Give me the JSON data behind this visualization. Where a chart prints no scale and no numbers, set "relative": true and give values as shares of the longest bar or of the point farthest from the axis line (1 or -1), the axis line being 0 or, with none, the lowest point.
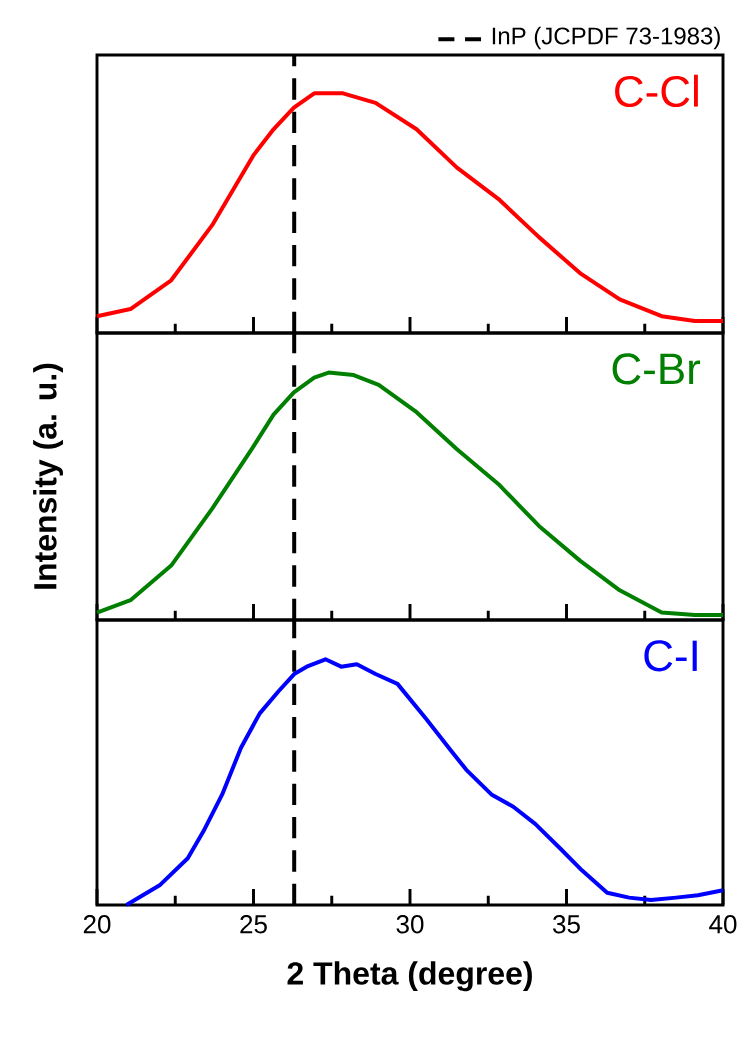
{
  "chart_data": [
    {
      "type": "line",
      "relative": true,
      "xlim": [
        20,
        40
      ],
      "xticks": [
        20,
        {
          "value": 22.5,
          "label": null
        },
        25,
        {
          "value": 27.5,
          "label": null
        },
        30,
        {
          "value": 32.5,
          "label": null
        },
        35,
        {
          "value": 37.5,
          "label": null
        },
        40
      ],
      "tick_labels": false,
      "legend": "top right",
      "series": [
        {
          "name": "C-Cl",
          "color": "#ff0000",
          "x": [
            20,
            21.07,
            22.37,
            23.68,
            24.99,
            25.64,
            26.29,
            26.94,
            27.86,
            28.9,
            30.21,
            31.5,
            32.82,
            34.12,
            35.43,
            36.7,
            38.04,
            39.1,
            40
          ],
          "values": [
            0.07,
            0.1,
            0.22,
            0.45,
            0.74,
            0.85,
            0.94,
            1.0,
            1.0,
            0.96,
            0.85,
            0.69,
            0.56,
            0.4,
            0.25,
            0.14,
            0.07,
            0.05,
            0.05
          ]
        }
      ],
      "ref_lines": [
        {
          "axis": "x",
          "value": 26.3,
          "label": "InP (JCPDF 73-1983)",
          "color": "#000000",
          "line_style": "dashed"
        }
      ]
    },
    {
      "type": "line",
      "relative": true,
      "xlim": [
        20,
        40
      ],
      "xticks": [
        20,
        {
          "value": 22.5,
          "label": null
        },
        25,
        {
          "value": 27.5,
          "label": null
        },
        30,
        {
          "value": 32.5,
          "label": null
        },
        35,
        {
          "value": 37.5,
          "label": null
        },
        40
      ],
      "tick_labels": false,
      "ylabel": "Intensity (a. u.)",
      "series": [
        {
          "name": "C-Br",
          "color": "#007f00",
          "x": [
            20,
            21.07,
            22.37,
            23.68,
            24.99,
            25.64,
            26.29,
            26.94,
            27.4,
            28.2,
            29.0,
            30.21,
            31.5,
            32.82,
            34.12,
            35.43,
            36.7,
            38.04,
            39.1,
            40
          ],
          "values": [
            0.03,
            0.08,
            0.22,
            0.45,
            0.7,
            0.83,
            0.92,
            0.98,
            1.0,
            0.99,
            0.95,
            0.84,
            0.69,
            0.55,
            0.38,
            0.24,
            0.12,
            0.03,
            0.02,
            0.02
          ]
        }
      ],
      "ref_lines": [
        {
          "axis": "x",
          "value": 26.3,
          "color": "#000000",
          "line_style": "dashed"
        }
      ]
    },
    {
      "type": "line",
      "relative": true,
      "xlim": [
        20,
        40
      ],
      "xticks": [
        20,
        {
          "value": 22.5,
          "label": null
        },
        25,
        {
          "value": 27.5,
          "label": null
        },
        30,
        {
          "value": 32.5,
          "label": null
        },
        35,
        {
          "value": 37.5,
          "label": null
        },
        40
      ],
      "tick_labels": "x",
      "xlabel": "2 Theta (degree)",
      "series": [
        {
          "name": "C-I",
          "color": "#0000ff",
          "x": [
            20.94,
            22.0,
            22.9,
            23.4,
            24.0,
            24.6,
            25.2,
            25.8,
            26.3,
            26.7,
            27.3,
            27.8,
            28.3,
            28.9,
            29.6,
            30.5,
            31.3,
            31.8,
            32.6,
            33.3,
            34.0,
            34.8,
            35.5,
            36.3,
            37.0,
            37.7,
            38.5,
            39.2,
            40
          ],
          "values": [
            0.0,
            0.08,
            0.19,
            0.3,
            0.45,
            0.64,
            0.78,
            0.87,
            0.94,
            0.97,
            1.0,
            0.97,
            0.98,
            0.94,
            0.9,
            0.76,
            0.63,
            0.55,
            0.45,
            0.4,
            0.33,
            0.23,
            0.14,
            0.05,
            0.03,
            0.02,
            0.03,
            0.04,
            0.06
          ]
        }
      ],
      "ref_lines": [
        {
          "axis": "x",
          "value": 26.3,
          "color": "#000000",
          "line_style": "dashed"
        }
      ]
    }
  ]
}
